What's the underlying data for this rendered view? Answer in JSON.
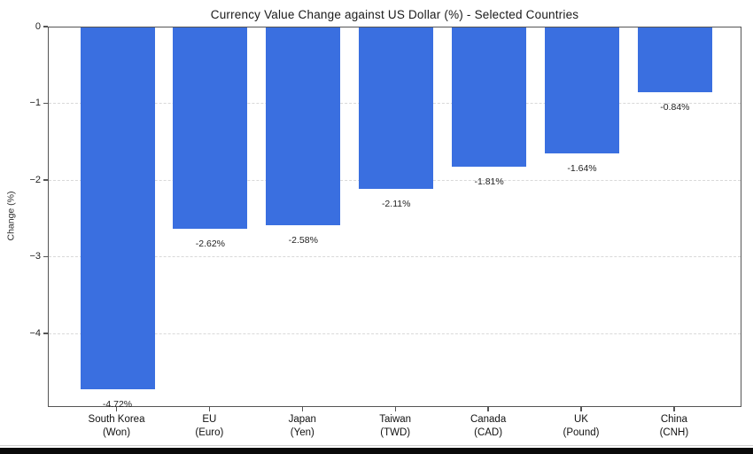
{
  "chart_data": {
    "type": "bar",
    "title": "Currency Value Change against US Dollar (%) - Selected Countries",
    "xlabel": "",
    "ylabel": "Change (%)",
    "ylim": [
      -4.96,
      0
    ],
    "yticks": [
      0,
      -1,
      -2,
      -3,
      -4
    ],
    "ytick_labels": [
      "0",
      "−1",
      "−2",
      "−3",
      "−4"
    ],
    "grid": "dashed horizontal gridlines at each y tick, boxed plot frame",
    "legend": "none",
    "bar_color": "#3a6fe0",
    "spine_color": "#555555",
    "grid_color": "#d9d9d9",
    "categories": [
      "South Korea (Won)",
      "EU (Euro)",
      "Japan (Yen)",
      "Taiwan (TWD)",
      "Canada (CAD)",
      "UK (Pound)",
      "China (CNH)"
    ],
    "category_lines": [
      [
        "South Korea",
        "(Won)"
      ],
      [
        "EU",
        "(Euro)"
      ],
      [
        "Japan",
        "(Yen)"
      ],
      [
        "Taiwan",
        "(TWD)"
      ],
      [
        "Canada",
        "(CAD)"
      ],
      [
        "UK",
        "(Pound)"
      ],
      [
        "China",
        "(CNH)"
      ]
    ],
    "values": [
      -4.72,
      -2.62,
      -2.58,
      -2.11,
      -1.81,
      -1.64,
      -0.84
    ],
    "value_labels": [
      "-4.72%",
      "-2.62%",
      "-2.58%",
      "-2.11%",
      "-1.81%",
      "-1.64%",
      "-0.84%"
    ]
  }
}
